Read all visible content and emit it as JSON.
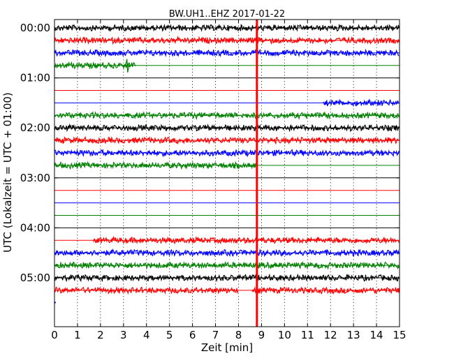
{
  "chart_data": {
    "type": "line",
    "title": "BW.UH1..EHZ 2017-01-22",
    "xlabel": "Zeit  [min]",
    "ylabel": "UTC (Lokalzeit = UTC + 01:00)",
    "xlim": [
      0,
      15
    ],
    "xticks": [
      0,
      1,
      2,
      3,
      4,
      5,
      6,
      7,
      8,
      9,
      10,
      11,
      12,
      13,
      14,
      15
    ],
    "xtick_labels": [
      "0",
      "1",
      "2",
      "3",
      "4",
      "5",
      "6",
      "7",
      "8",
      "9",
      "10",
      "11",
      "12",
      "13",
      "14",
      "15"
    ],
    "ytick_labels": [
      "00:00",
      "01:00",
      "02:00",
      "03:00",
      "04:00",
      "05:00"
    ],
    "trace_interval_min": 15,
    "color_cycle": [
      "#000000",
      "#ff0000",
      "#0000ff",
      "#008000"
    ],
    "grid": "vertical dotted",
    "event_marker": {
      "x": 8.8,
      "color": "#ff0000"
    },
    "traces": [
      {
        "start": "00:00",
        "segments": [
          [
            0,
            15
          ]
        ]
      },
      {
        "start": "00:15",
        "segments": [
          [
            0,
            15
          ]
        ]
      },
      {
        "start": "00:30",
        "segments": [
          [
            0,
            15
          ]
        ]
      },
      {
        "start": "00:45",
        "segments": [
          [
            0,
            3.55
          ]
        ]
      },
      {
        "start": "01:00",
        "segments": []
      },
      {
        "start": "01:15",
        "segments": []
      },
      {
        "start": "01:30",
        "segments": [
          [
            11.7,
            15
          ]
        ]
      },
      {
        "start": "01:45",
        "segments": [
          [
            0,
            15
          ]
        ]
      },
      {
        "start": "02:00",
        "segments": [
          [
            0,
            15
          ]
        ]
      },
      {
        "start": "02:15",
        "segments": [
          [
            0,
            15
          ]
        ]
      },
      {
        "start": "02:30",
        "segments": [
          [
            0,
            15
          ]
        ]
      },
      {
        "start": "02:45",
        "segments": [
          [
            0,
            8.85
          ]
        ]
      },
      {
        "start": "03:00",
        "segments": []
      },
      {
        "start": "03:15",
        "segments": []
      },
      {
        "start": "03:30",
        "segments": []
      },
      {
        "start": "03:45",
        "segments": []
      },
      {
        "start": "04:00",
        "segments": []
      },
      {
        "start": "04:15",
        "segments": [
          [
            1.7,
            15
          ]
        ]
      },
      {
        "start": "04:30",
        "segments": [
          [
            0,
            15
          ]
        ]
      },
      {
        "start": "04:45",
        "segments": [
          [
            0,
            15
          ]
        ]
      },
      {
        "start": "05:00",
        "segments": [
          [
            0,
            15
          ]
        ]
      },
      {
        "start": "05:15",
        "segments": [
          [
            0,
            8.0
          ],
          [
            8.6,
            15
          ]
        ]
      },
      {
        "start": "05:30",
        "segments": [
          [
            0,
            0.08
          ]
        ]
      }
    ]
  }
}
